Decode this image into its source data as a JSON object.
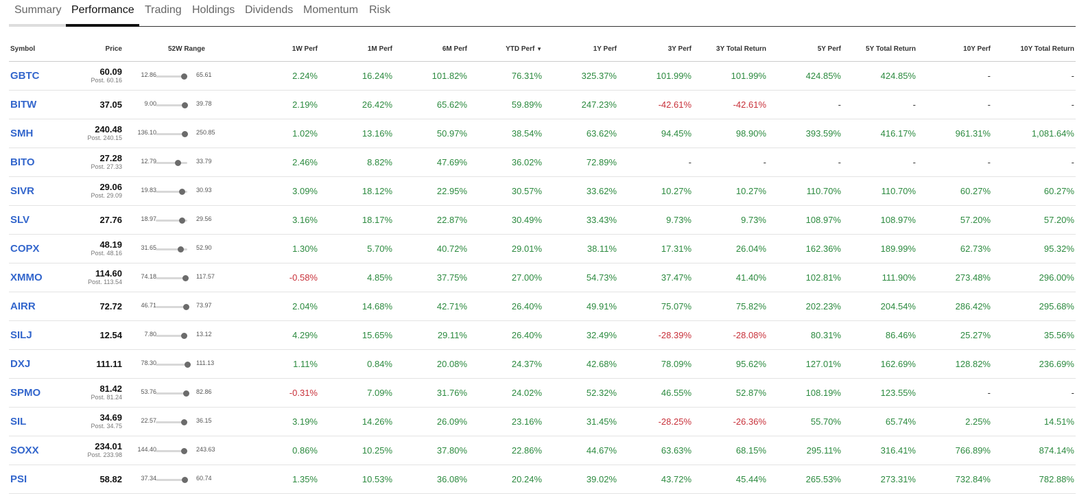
{
  "tabs": [
    {
      "label": "Summary",
      "active": false
    },
    {
      "label": "Performance",
      "active": true
    },
    {
      "label": "Trading",
      "active": false
    },
    {
      "label": "Holdings",
      "active": false
    },
    {
      "label": "Dividends",
      "active": false
    },
    {
      "label": "Momentum",
      "active": false
    },
    {
      "label": "Risk",
      "active": false
    }
  ],
  "columns": {
    "symbol": "Symbol",
    "price": "Price",
    "range": "52W Range",
    "w1": "1W Perf",
    "m1": "1M Perf",
    "m6": "6M Perf",
    "ytd": "YTD Perf",
    "ytd_sort_icon": "caret-down-icon",
    "y1": "1Y Perf",
    "y3": "3Y Perf",
    "y3tr": "3Y Total Return",
    "y5": "5Y Perf",
    "y5tr": "5Y Total Return",
    "y10": "10Y Perf",
    "y10tr": "10Y Total Return"
  },
  "colors": {
    "positive": "#2c8a3f",
    "negative": "#c8313a",
    "link": "#3366cc"
  },
  "rows": [
    {
      "symbol": "GBTC",
      "price": "60.09",
      "post": "Post. 60.16",
      "low": "12.86",
      "high": "65.61",
      "pos": 0.89,
      "perf": [
        "2.24%",
        "16.24%",
        "101.82%",
        "76.31%",
        "325.37%",
        "101.99%",
        "101.99%",
        "424.85%",
        "424.85%",
        "-",
        "-"
      ]
    },
    {
      "symbol": "BITW",
      "price": "37.05",
      "post": "",
      "low": "9.00",
      "high": "39.78",
      "pos": 0.91,
      "perf": [
        "2.19%",
        "26.42%",
        "65.62%",
        "59.89%",
        "247.23%",
        "-42.61%",
        "-42.61%",
        "-",
        "-",
        "-",
        "-"
      ]
    },
    {
      "symbol": "SMH",
      "price": "240.48",
      "post": "Post. 240.15",
      "low": "136.10",
      "high": "250.85",
      "pos": 0.91,
      "perf": [
        "1.02%",
        "13.16%",
        "50.97%",
        "38.54%",
        "63.62%",
        "94.45%",
        "98.90%",
        "393.59%",
        "416.17%",
        "961.31%",
        "1,081.64%"
      ]
    },
    {
      "symbol": "BITO",
      "price": "27.28",
      "post": "Post. 27.33",
      "low": "12.79",
      "high": "33.79",
      "pos": 0.69,
      "perf": [
        "2.46%",
        "8.82%",
        "47.69%",
        "36.02%",
        "72.89%",
        "-",
        "-",
        "-",
        "-",
        "-",
        "-"
      ]
    },
    {
      "symbol": "SIVR",
      "price": "29.06",
      "post": "Post. 29.09",
      "low": "19.83",
      "high": "30.93",
      "pos": 0.83,
      "perf": [
        "3.09%",
        "18.12%",
        "22.95%",
        "30.57%",
        "33.62%",
        "10.27%",
        "10.27%",
        "110.70%",
        "110.70%",
        "60.27%",
        "60.27%"
      ]
    },
    {
      "symbol": "SLV",
      "price": "27.76",
      "post": "",
      "low": "18.97",
      "high": "29.56",
      "pos": 0.83,
      "perf": [
        "3.16%",
        "18.17%",
        "22.87%",
        "30.49%",
        "33.43%",
        "9.73%",
        "9.73%",
        "108.97%",
        "108.97%",
        "57.20%",
        "57.20%"
      ]
    },
    {
      "symbol": "COPX",
      "price": "48.19",
      "post": "Post. 48.16",
      "low": "31.65",
      "high": "52.90",
      "pos": 0.78,
      "perf": [
        "1.30%",
        "5.70%",
        "40.72%",
        "29.01%",
        "38.11%",
        "17.31%",
        "26.04%",
        "162.36%",
        "189.99%",
        "62.73%",
        "95.32%"
      ]
    },
    {
      "symbol": "XMMO",
      "price": "114.60",
      "post": "Post. 113.54",
      "low": "74.18",
      "high": "117.57",
      "pos": 0.93,
      "perf": [
        "-0.58%",
        "4.85%",
        "37.75%",
        "27.00%",
        "54.73%",
        "37.47%",
        "41.40%",
        "102.81%",
        "111.90%",
        "273.48%",
        "296.00%"
      ]
    },
    {
      "symbol": "AIRR",
      "price": "72.72",
      "post": "",
      "low": "46.71",
      "high": "73.97",
      "pos": 0.95,
      "perf": [
        "2.04%",
        "14.68%",
        "42.71%",
        "26.40%",
        "49.91%",
        "75.07%",
        "75.82%",
        "202.23%",
        "204.54%",
        "286.42%",
        "295.68%"
      ]
    },
    {
      "symbol": "SILJ",
      "price": "12.54",
      "post": "",
      "low": "7.80",
      "high": "13.12",
      "pos": 0.89,
      "perf": [
        "4.29%",
        "15.65%",
        "29.11%",
        "26.40%",
        "32.49%",
        "-28.39%",
        "-28.08%",
        "80.31%",
        "86.46%",
        "25.27%",
        "35.56%"
      ]
    },
    {
      "symbol": "DXJ",
      "price": "111.11",
      "post": "",
      "low": "78.30",
      "high": "111.13",
      "pos": 1.0,
      "perf": [
        "1.11%",
        "0.84%",
        "20.08%",
        "24.37%",
        "42.68%",
        "78.09%",
        "95.62%",
        "127.01%",
        "162.69%",
        "128.82%",
        "236.69%"
      ]
    },
    {
      "symbol": "SPMO",
      "price": "81.42",
      "post": "Post. 81.24",
      "low": "53.76",
      "high": "82.86",
      "pos": 0.95,
      "perf": [
        "-0.31%",
        "7.09%",
        "31.76%",
        "24.02%",
        "52.32%",
        "46.55%",
        "52.87%",
        "108.19%",
        "123.55%",
        "-",
        "-"
      ]
    },
    {
      "symbol": "SIL",
      "price": "34.69",
      "post": "Post. 34.75",
      "low": "22.57",
      "high": "36.15",
      "pos": 0.89,
      "perf": [
        "3.19%",
        "14.26%",
        "26.09%",
        "23.16%",
        "31.45%",
        "-28.25%",
        "-26.36%",
        "55.70%",
        "65.74%",
        "2.25%",
        "14.51%"
      ]
    },
    {
      "symbol": "SOXX",
      "price": "234.01",
      "post": "Post. 233.98",
      "low": "144.40",
      "high": "243.63",
      "pos": 0.9,
      "perf": [
        "0.86%",
        "10.25%",
        "37.80%",
        "22.86%",
        "44.67%",
        "63.63%",
        "68.15%",
        "295.11%",
        "316.41%",
        "766.89%",
        "874.14%"
      ]
    },
    {
      "symbol": "PSI",
      "price": "58.82",
      "post": "",
      "low": "37.34",
      "high": "60.74",
      "pos": 0.92,
      "perf": [
        "1.35%",
        "10.53%",
        "36.08%",
        "20.24%",
        "39.02%",
        "43.72%",
        "45.44%",
        "265.53%",
        "273.31%",
        "732.84%",
        "782.88%"
      ]
    }
  ]
}
